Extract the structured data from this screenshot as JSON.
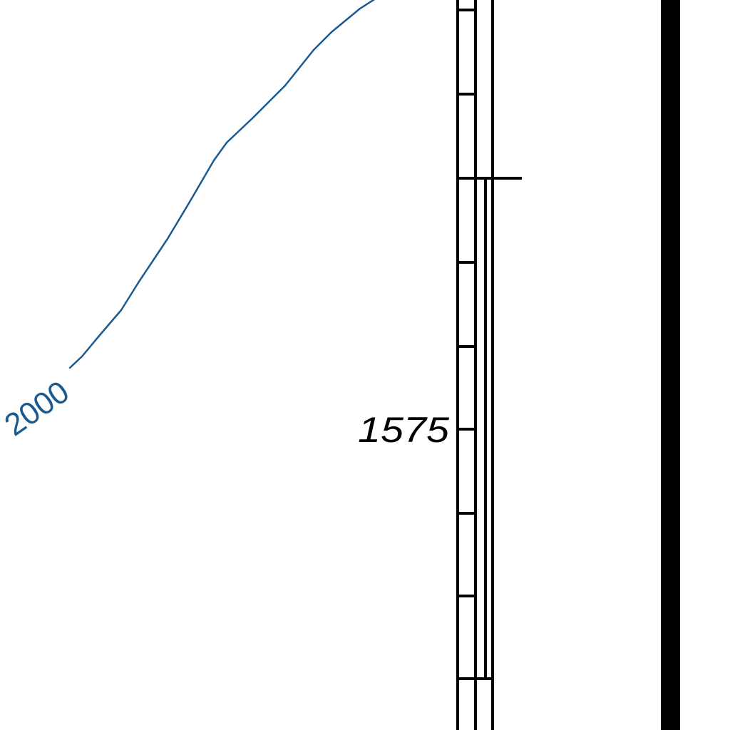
{
  "map": {
    "contour": {
      "label": "2000",
      "color": "#1a5a90"
    },
    "depth_scale": {
      "label": "1575",
      "color": "#000000"
    }
  }
}
